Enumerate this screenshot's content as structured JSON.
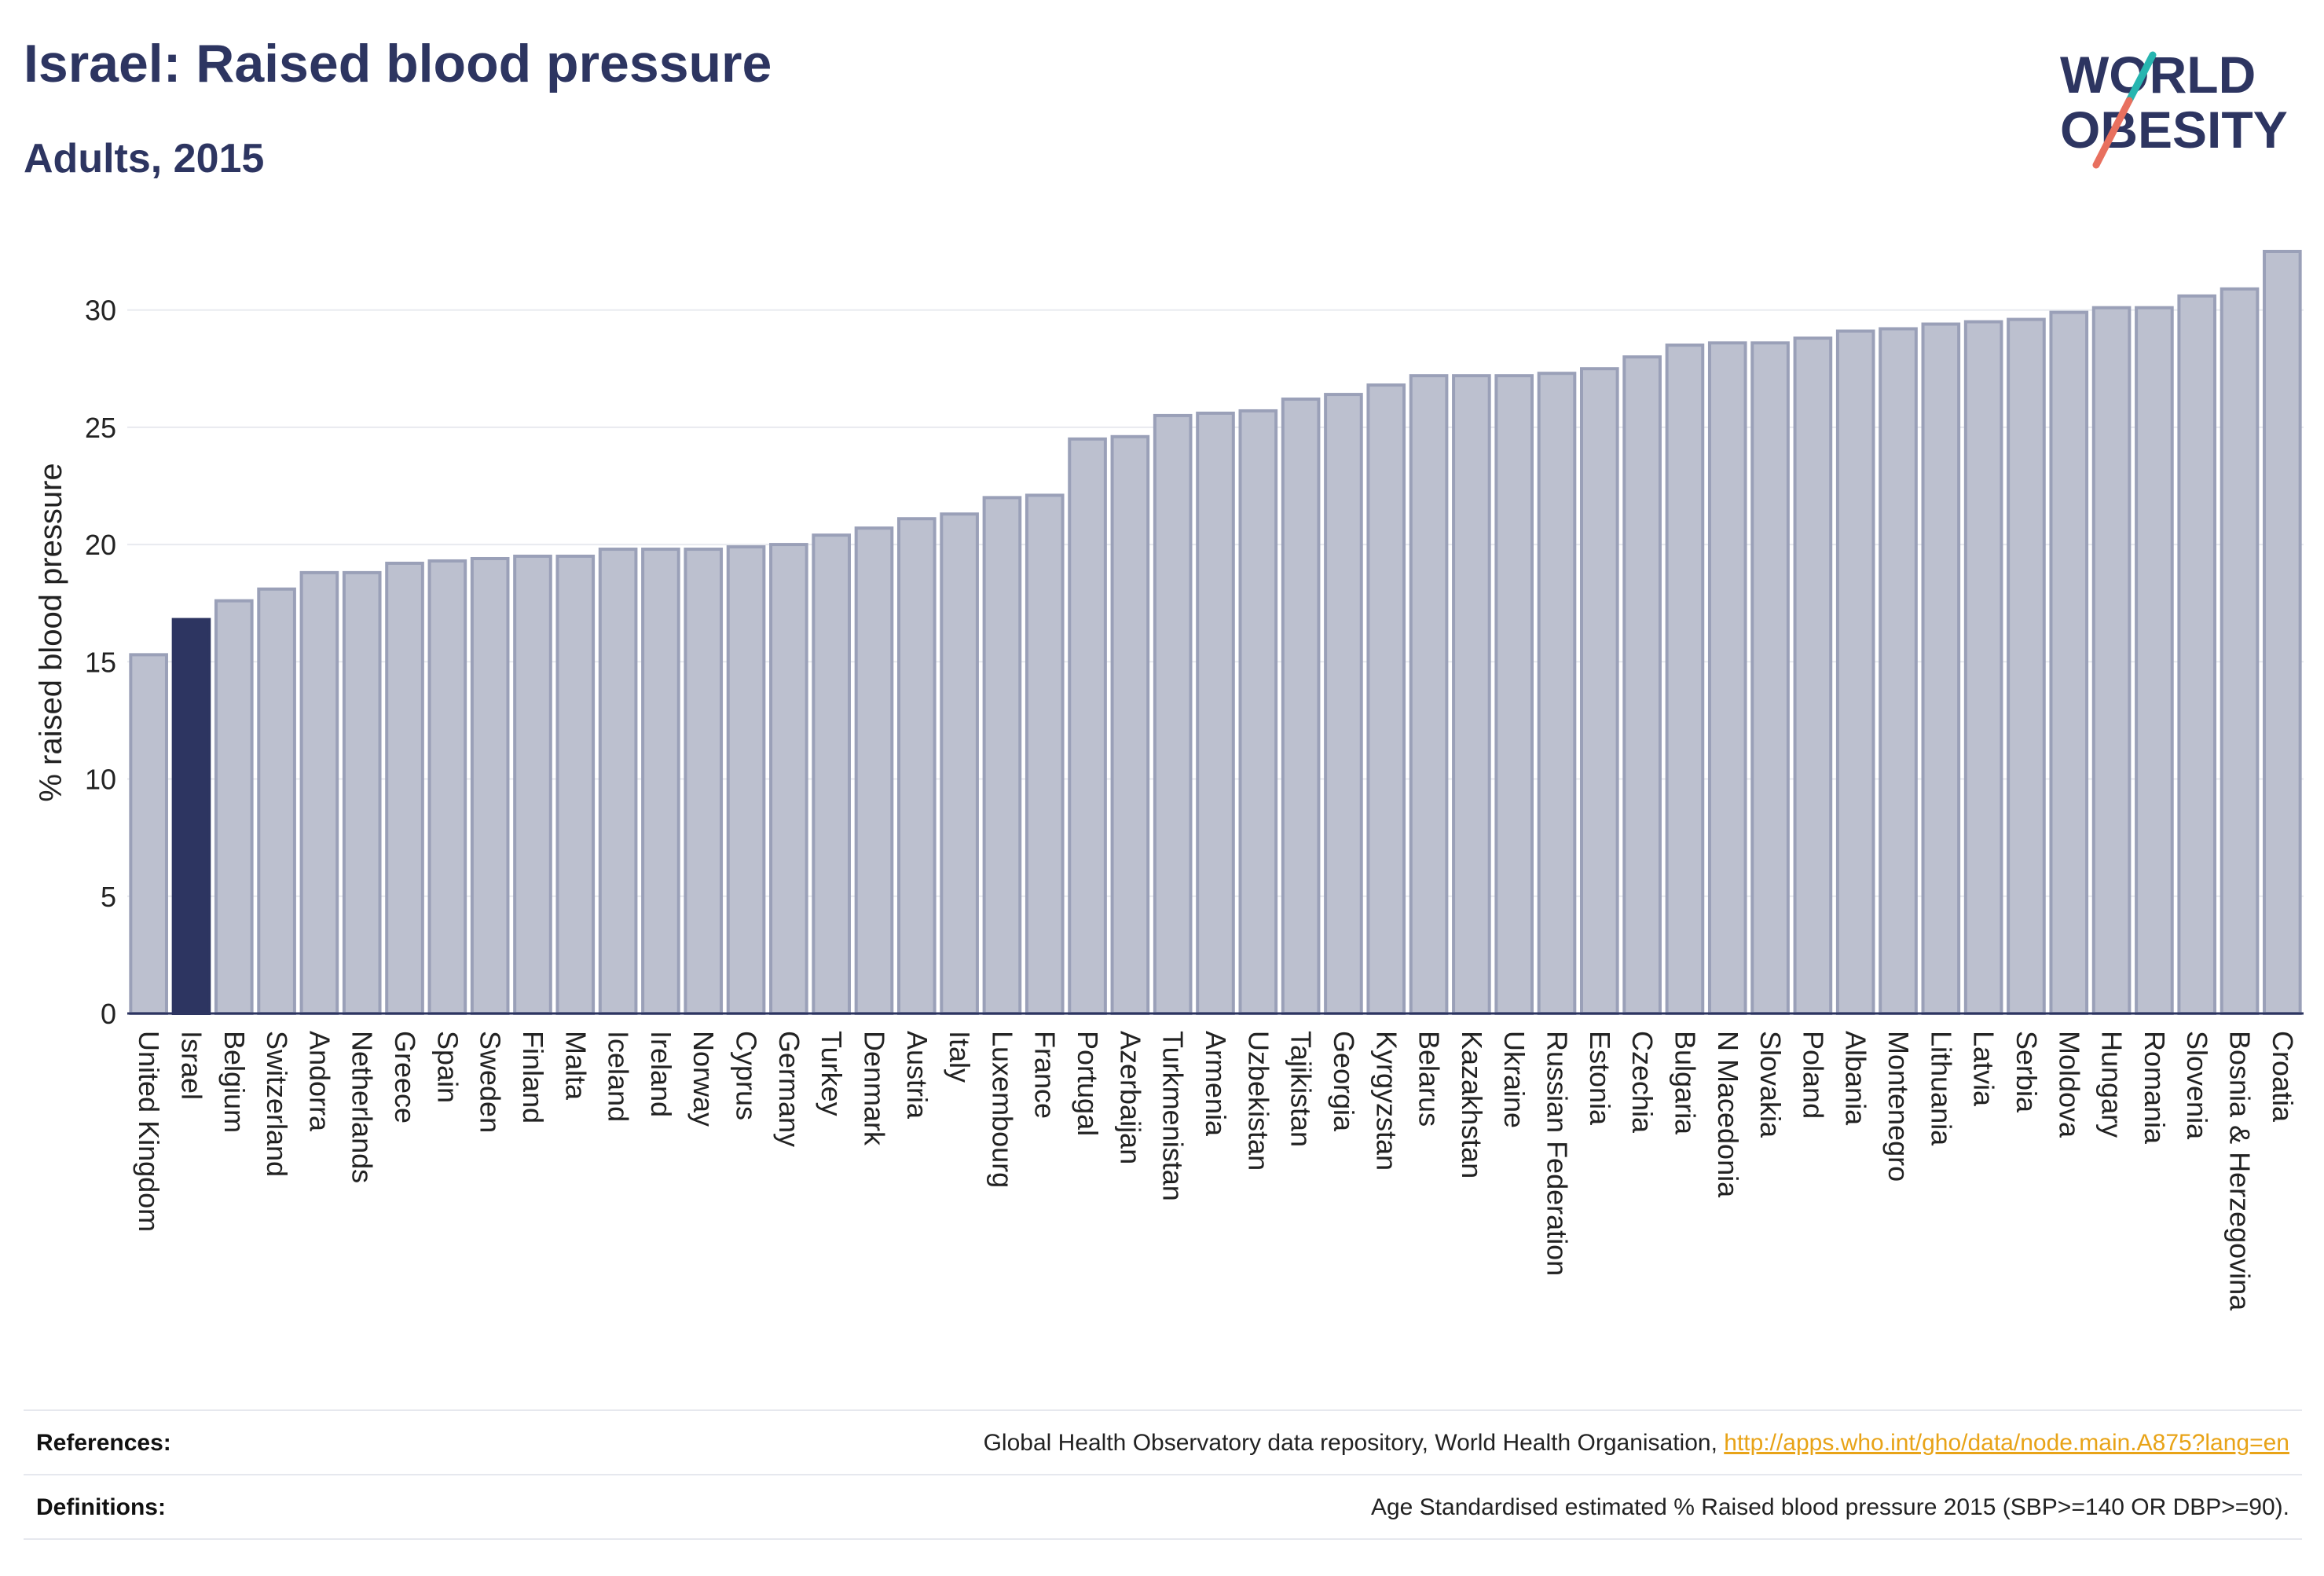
{
  "header": {
    "title": "Israel: Raised blood pressure",
    "subtitle": "Adults, 2015"
  },
  "logo": {
    "line1": "WORLD",
    "line2": "OBESITY"
  },
  "footer": {
    "references_label": "References:",
    "references_text": "Global Health Observatory data repository, World Health Organisation, ",
    "references_link": "http://apps.who.int/gho/data/node.main.A875?lang=en",
    "definitions_label": "Definitions:",
    "definitions_text": "Age Standardised estimated % Raised blood pressure 2015 (SBP>=140 OR DBP>=90)."
  },
  "colors": {
    "bar_fill": "#bcc0cf",
    "bar_stroke": "#9aa0b8",
    "highlight_fill": "#2d3561",
    "grid": "#e8eaef",
    "axis_text": "#222222",
    "logo_navy": "#2d3561",
    "logo_teal": "#27b5b0",
    "logo_coral": "#e8705f"
  },
  "chart_data": {
    "type": "bar",
    "title": "Israel: Raised blood pressure",
    "subtitle": "Adults, 2015",
    "xlabel": "",
    "ylabel": "% raised blood pressure",
    "ylim": [
      0,
      32.5
    ],
    "yticks": [
      0,
      5,
      10,
      15,
      20,
      25,
      30
    ],
    "grid": true,
    "highlight": "Israel",
    "categories": [
      "United Kingdom",
      "Israel",
      "Belgium",
      "Switzerland",
      "Andorra",
      "Netherlands",
      "Greece",
      "Spain",
      "Sweden",
      "Finland",
      "Malta",
      "Iceland",
      "Ireland",
      "Norway",
      "Cyprus",
      "Germany",
      "Turkey",
      "Denmark",
      "Austria",
      "Italy",
      "Luxembourg",
      "France",
      "Portugal",
      "Azerbaijan",
      "Turkmenistan",
      "Armenia",
      "Uzbekistan",
      "Tajikistan",
      "Georgia",
      "Kyrgyzstan",
      "Belarus",
      "Kazakhstan",
      "Ukraine",
      "Russian Federation",
      "Estonia",
      "Czechia",
      "Bulgaria",
      "N Macedonia",
      "Slovakia",
      "Poland",
      "Albania",
      "Montenegro",
      "Lithuania",
      "Latvia",
      "Serbia",
      "Moldova",
      "Hungary",
      "Romania",
      "Slovenia",
      "Bosnia & Herzegovina",
      "Croatia"
    ],
    "values": [
      15.3,
      16.8,
      17.6,
      18.1,
      18.8,
      18.8,
      19.2,
      19.3,
      19.4,
      19.5,
      19.5,
      19.8,
      19.8,
      19.8,
      19.9,
      20.0,
      20.4,
      20.7,
      21.1,
      21.3,
      22.0,
      22.1,
      24.5,
      24.6,
      25.5,
      25.6,
      25.7,
      26.2,
      26.4,
      26.8,
      27.2,
      27.2,
      27.2,
      27.3,
      27.5,
      28.0,
      28.5,
      28.6,
      28.6,
      28.8,
      29.1,
      29.2,
      29.4,
      29.5,
      29.6,
      29.9,
      30.1,
      30.1,
      30.6,
      30.9,
      32.5
    ]
  }
}
